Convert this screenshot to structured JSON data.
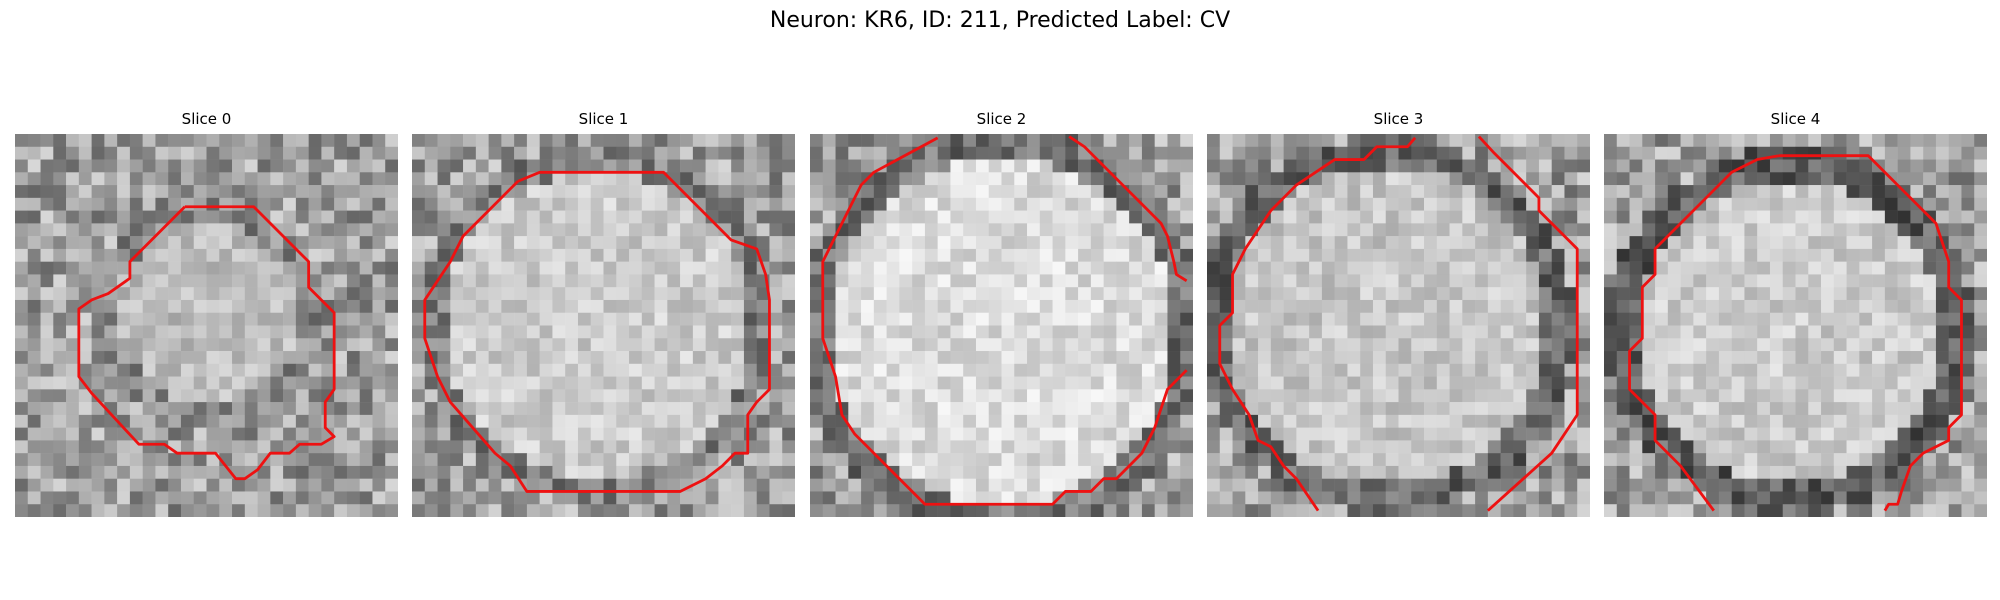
{
  "figure": {
    "title": "Neuron: KR6, ID: 211, Predicted Label: CV"
  },
  "panels": [
    {
      "title": "Slice 0"
    },
    {
      "title": "Slice 1"
    },
    {
      "title": "Slice 2"
    },
    {
      "title": "Slice 3"
    },
    {
      "title": "Slice 4"
    }
  ],
  "colors": {
    "contour": "#ee1111",
    "background": "#ffffff"
  }
}
